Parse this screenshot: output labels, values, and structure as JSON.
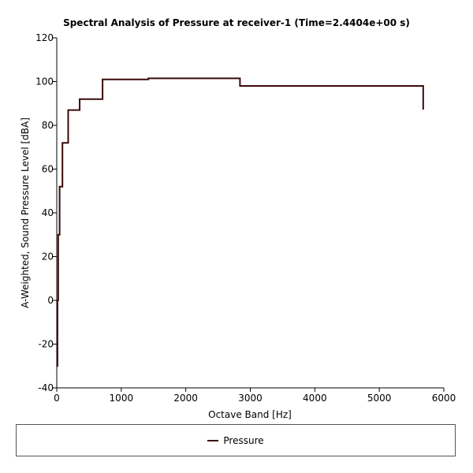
{
  "chart_data": {
    "type": "line",
    "title": "Spectral Analysis of Pressure at receiver-1 (Time=2.4404e+00 s)",
    "xlabel": "Octave Band [Hz]",
    "ylabel": "A-Weighted, Sound Pressure Level [dBA]",
    "xlim": [
      0,
      6000
    ],
    "ylim": [
      -40,
      120
    ],
    "xticks": [
      0,
      1000,
      2000,
      3000,
      4000,
      5000,
      6000
    ],
    "yticks": [
      -40,
      -20,
      0,
      20,
      40,
      60,
      80,
      100,
      120
    ],
    "grid": false,
    "legend_placement": "bottom",
    "step": "post",
    "series": [
      {
        "name": "Pressure",
        "color": "#3b0a0a",
        "x": [
          0,
          11,
          22,
          44,
          88,
          177,
          355,
          710,
          1420,
          2840,
          5680
        ],
        "y": [
          -30,
          0,
          30,
          52,
          72,
          87,
          92,
          101,
          101.5,
          98,
          87.2
        ]
      }
    ]
  }
}
